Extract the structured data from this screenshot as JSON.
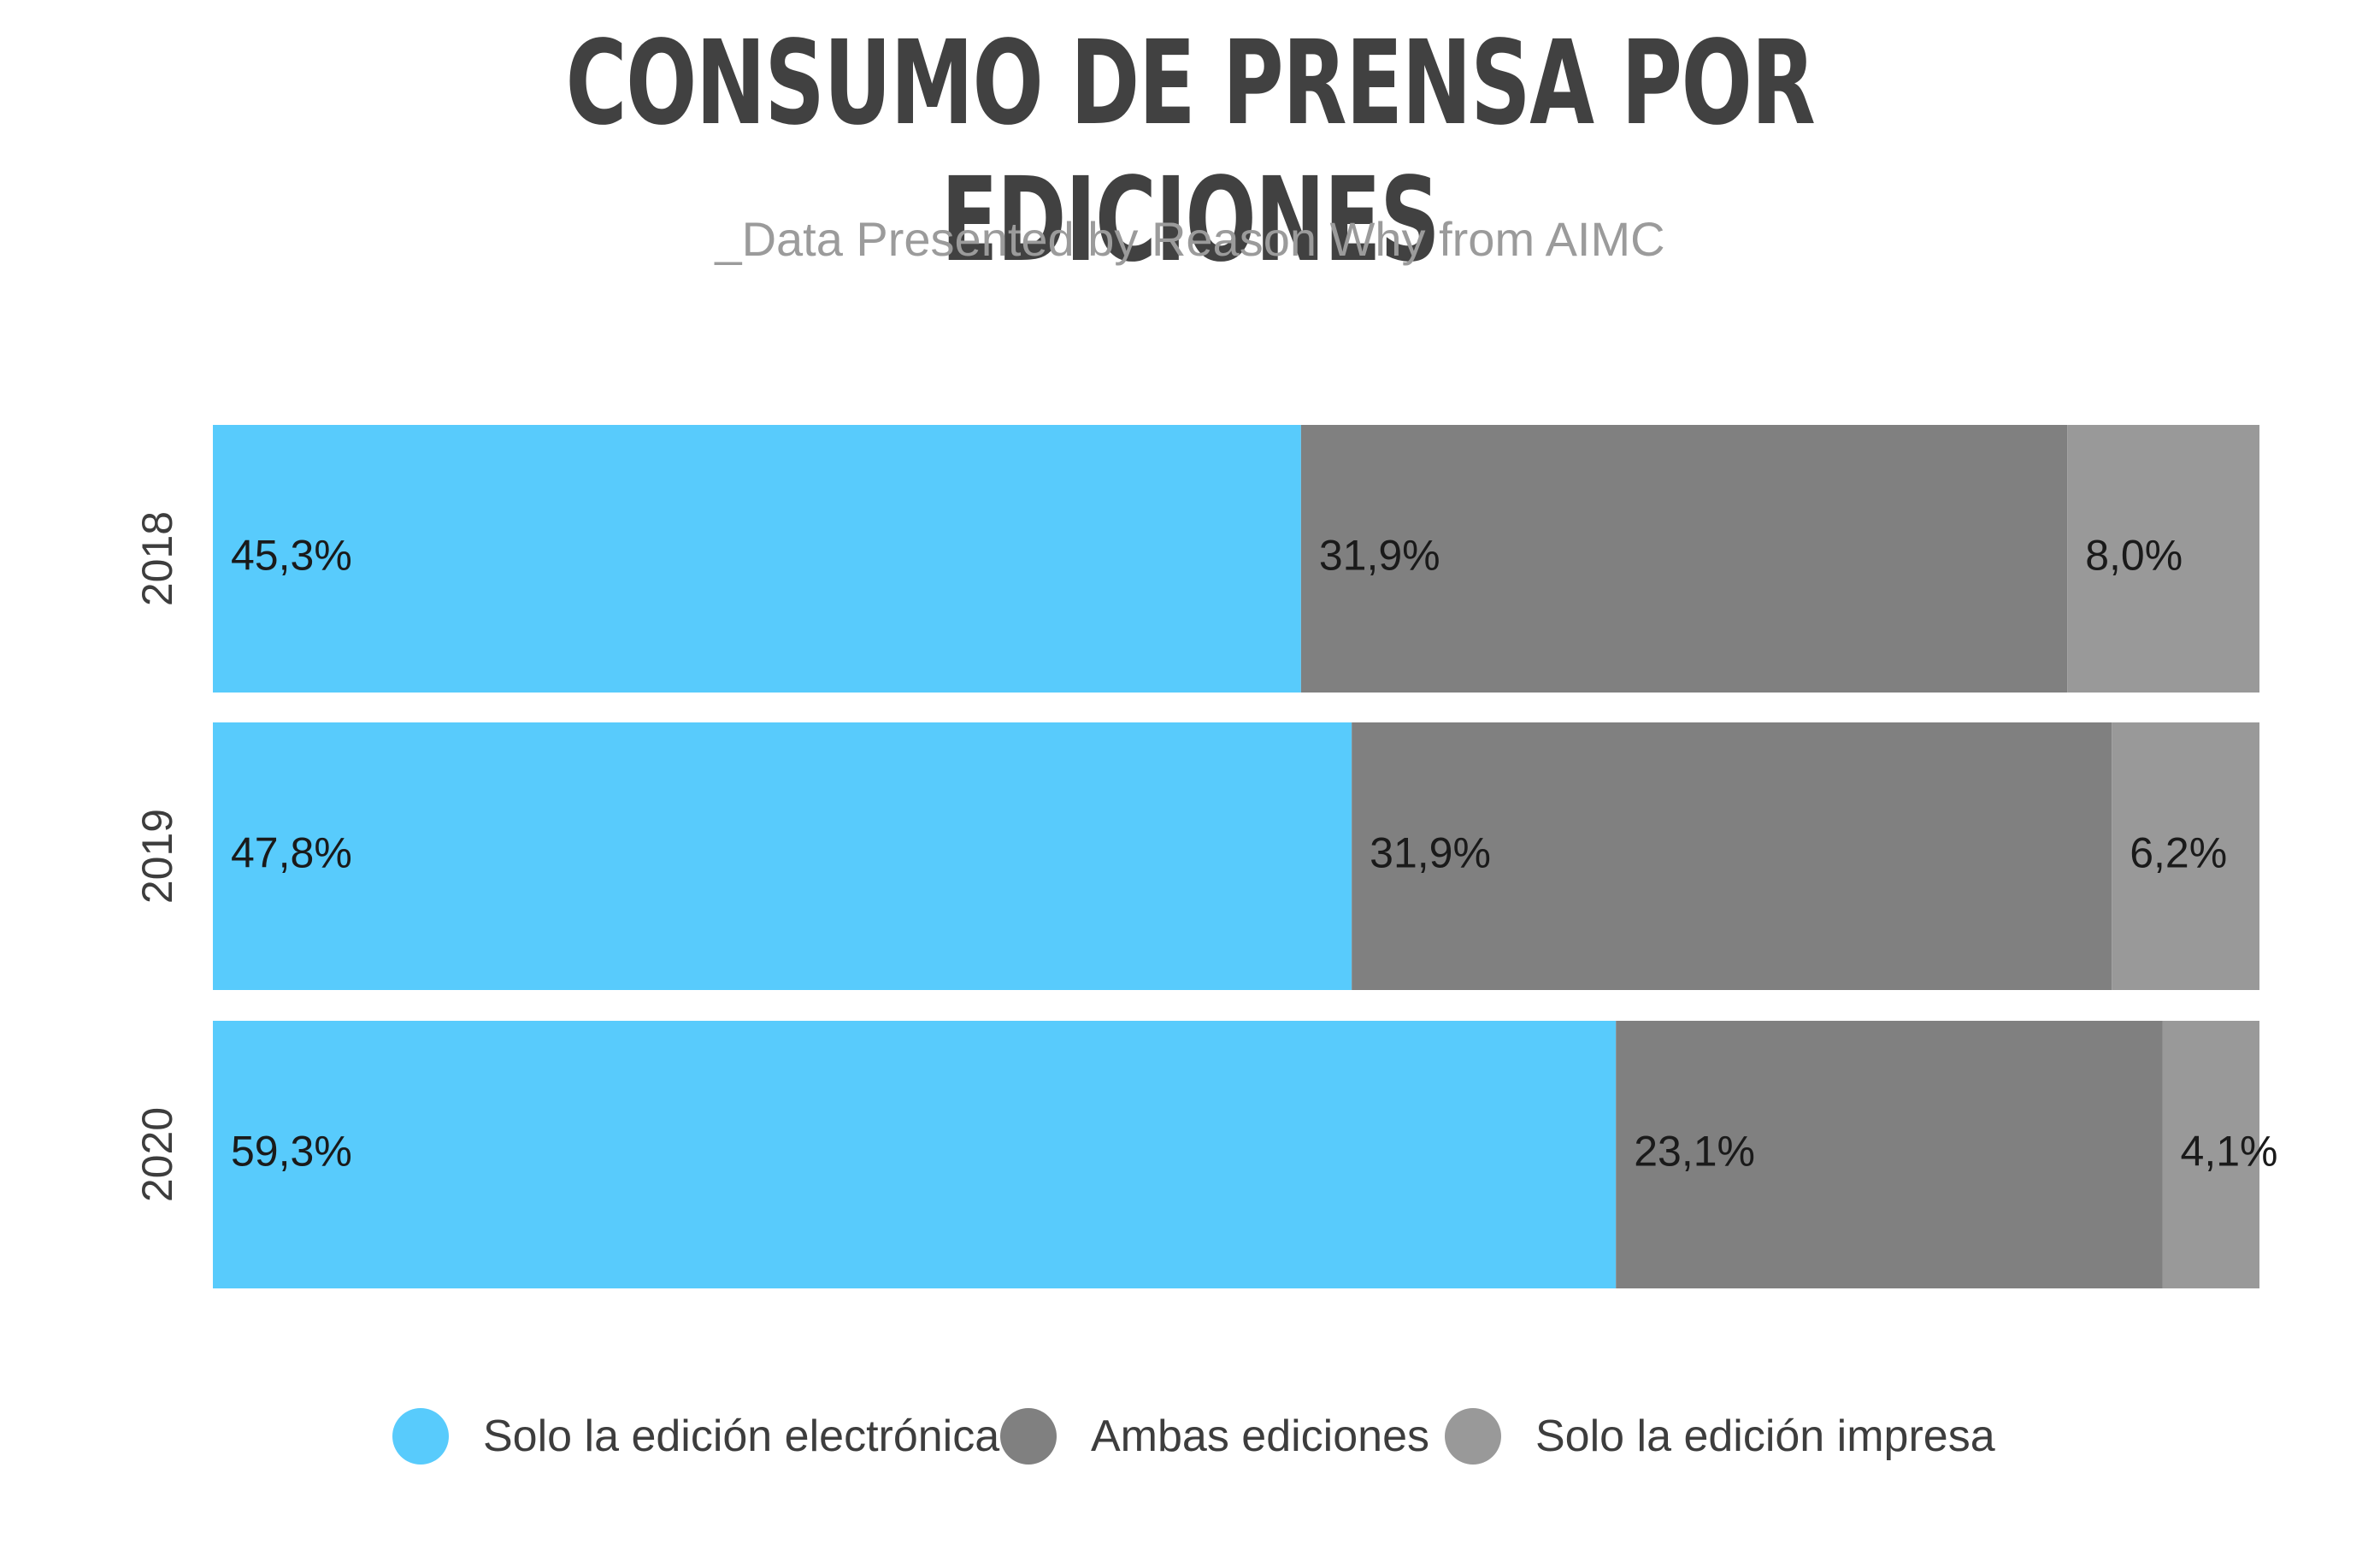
{
  "chart_data": {
    "type": "bar",
    "orientation": "horizontal",
    "stacked": true,
    "title": "CONSUMO DE PRENSA POR EDICIONES",
    "subtitle": "_Data Presented by Reason Why from AIMC",
    "categories": [
      "2018",
      "2019",
      "2020"
    ],
    "series": [
      {
        "name": "Solo la edición electrónica",
        "color": "#58CBFC",
        "values": [
          45.3,
          47.8,
          59.3
        ],
        "labels": [
          "45,3%",
          "47,8%",
          "59,3%"
        ]
      },
      {
        "name": "Ambas ediciones",
        "color": "#808080",
        "values": [
          31.9,
          31.9,
          23.1
        ],
        "labels": [
          "31,9%",
          "31,9%",
          "23,1%"
        ]
      },
      {
        "name": "Solo la edición impresa",
        "color": "#999999",
        "values": [
          8.0,
          6.2,
          4.1
        ],
        "labels": [
          "8,0%",
          "6,2%",
          "4,1%"
        ]
      }
    ],
    "legend_position": "bottom",
    "grid": false,
    "axis_visible": false
  }
}
